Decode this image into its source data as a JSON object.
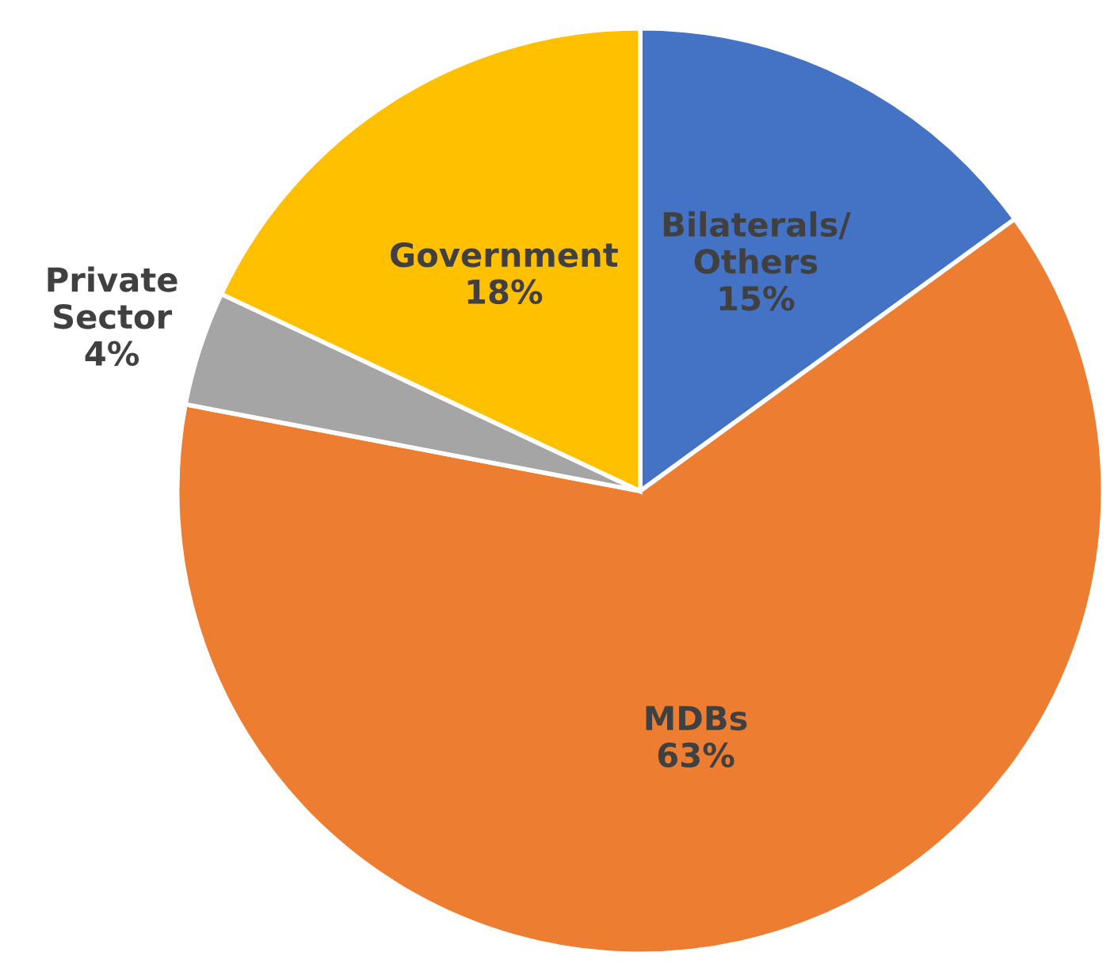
{
  "chart_data": {
    "type": "pie",
    "categories": [
      "Bilaterals/\nOthers",
      "MDBs",
      "Private\nSector",
      "Government"
    ],
    "values": [
      15,
      63,
      4,
      18
    ],
    "value_labels": [
      "15%",
      "63%",
      "4%",
      "18%"
    ],
    "colors": [
      "#4472c4",
      "#ed7d31",
      "#a5a5a5",
      "#ffc000"
    ],
    "legend": false
  }
}
